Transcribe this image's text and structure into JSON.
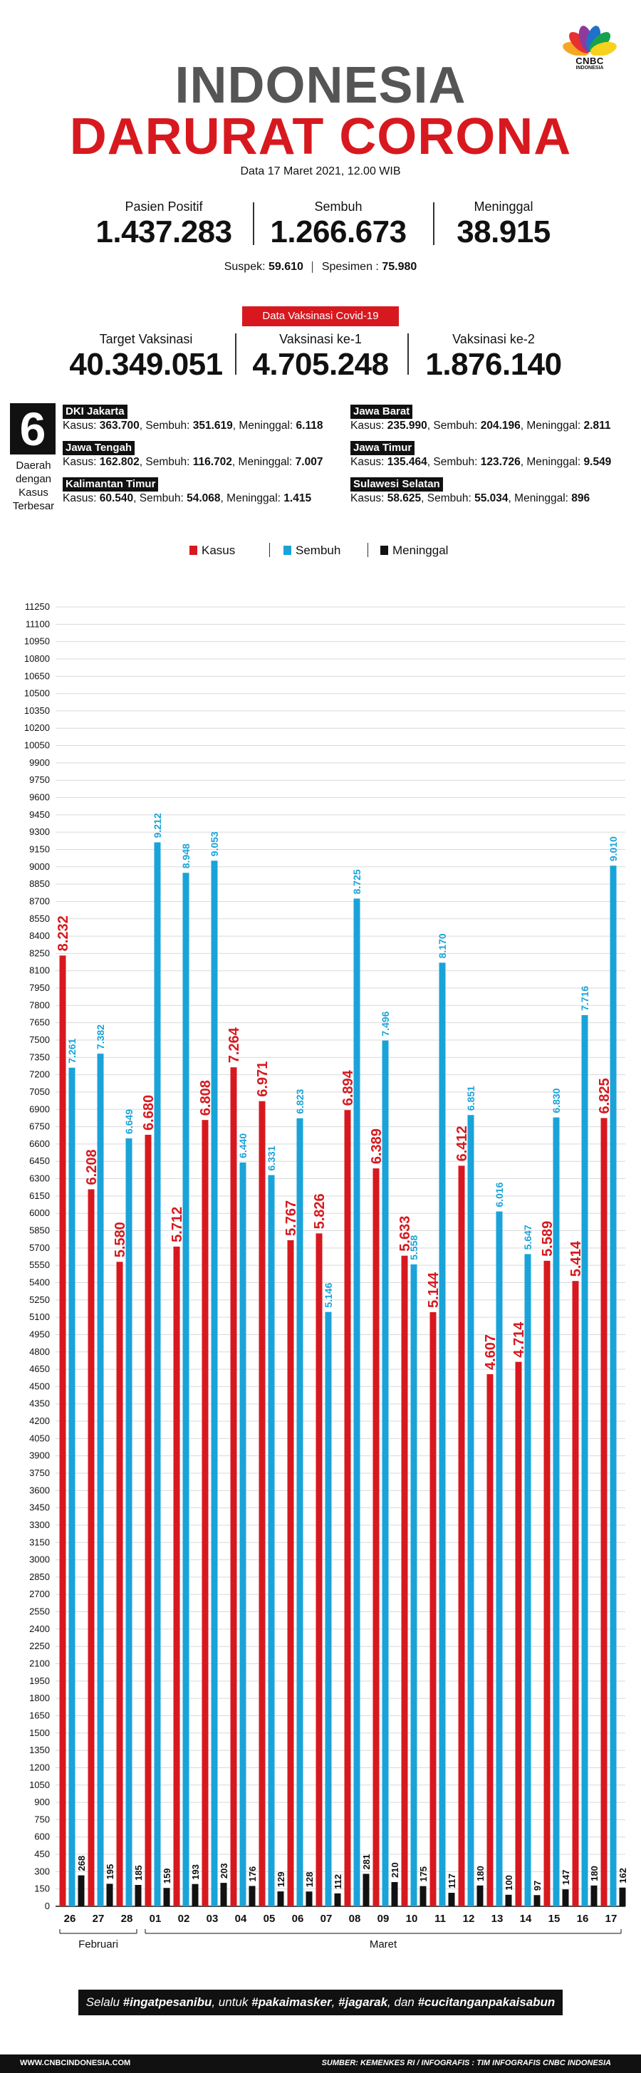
{
  "brand": {
    "logo_text": "CNBC",
    "logo_sub": "INDONESIA",
    "logo_colors": [
      "#f5a623",
      "#e8312f",
      "#8e3a9d",
      "#1f72c9",
      "#16a34a",
      "#f7d11e"
    ]
  },
  "header": {
    "title_line1": "INDONESIA",
    "title_line2": "DARURAT CORONA",
    "date": "Data 17 Maret 2021, 12.00 WIB"
  },
  "stats": [
    {
      "label": "Pasien Positif",
      "value": "1.437.283"
    },
    {
      "label": "Sembuh",
      "value": "1.266.673"
    },
    {
      "label": "Meninggal",
      "value": "38.915"
    }
  ],
  "substats": {
    "suspek_label": "Suspek:",
    "suspek_value": "59.610",
    "spesimen_label": "Spesimen :",
    "spesimen_value": "75.980"
  },
  "vaccination": {
    "badge": "Data Vaksinasi Covid-19",
    "items": [
      {
        "label": "Target Vaksinasi",
        "value": "40.349.051"
      },
      {
        "label": "Vaksinasi ke-1",
        "value": "4.705.248"
      },
      {
        "label": "Vaksinasi ke-2",
        "value": "1.876.140"
      }
    ]
  },
  "top_regions": {
    "number": "6",
    "caption_lines": [
      "Daerah",
      "dengan",
      "Kasus",
      "Terbesar"
    ],
    "kasus_label": "Kasus:",
    "sembuh_label": "Sembuh:",
    "meninggal_label": "Meninggal:",
    "regions": [
      {
        "name": "DKI Jakarta",
        "kasus": "363.700",
        "sembuh": "351.619",
        "meninggal": "6.118"
      },
      {
        "name": "Jawa Tengah",
        "kasus": "162.802",
        "sembuh": "116.702",
        "meninggal": "7.007"
      },
      {
        "name": "Kalimantan Timur",
        "kasus": "60.540",
        "sembuh": "54.068",
        "meninggal": "1.415"
      },
      {
        "name": "Jawa Barat",
        "kasus": "235.990",
        "sembuh": "204.196",
        "meninggal": "2.811"
      },
      {
        "name": "Jawa Timur",
        "kasus": "135.464",
        "sembuh": "123.726",
        "meninggal": "9.549"
      },
      {
        "name": "Sulawesi Selatan",
        "kasus": "58.625",
        "sembuh": "55.034",
        "meninggal": "896"
      }
    ]
  },
  "legend": [
    {
      "label": "Kasus",
      "color": "#d7191f"
    },
    {
      "label": "Sembuh",
      "color": "#1aa3d9"
    },
    {
      "label": "Meninggal",
      "color": "#111111"
    }
  ],
  "chart_data": {
    "type": "bar",
    "title": "",
    "xlabel": "",
    "ylabel": "",
    "ylim": [
      0,
      11250
    ],
    "ytick_step": 150,
    "grid": true,
    "legend_position": "top-center",
    "categories": [
      "26",
      "27",
      "28",
      "01",
      "02",
      "03",
      "04",
      "05",
      "06",
      "07",
      "08",
      "09",
      "10",
      "11",
      "12",
      "13",
      "14",
      "15",
      "16",
      "17"
    ],
    "month_groups": [
      {
        "label": "Februari",
        "from": "26",
        "to": "28"
      },
      {
        "label": "Maret",
        "from": "01",
        "to": "17"
      }
    ],
    "series": [
      {
        "name": "Kasus",
        "color": "#d7191f",
        "values": [
          8232,
          6208,
          5580,
          6680,
          5712,
          6808,
          7264,
          6971,
          5767,
          5826,
          6894,
          6389,
          5633,
          5144,
          6412,
          4607,
          4714,
          5589,
          5414,
          6825
        ],
        "labels": [
          "8.232",
          "6.208",
          "5.580",
          "6.680",
          "5.712",
          "6.808",
          "7.264",
          "6.971",
          "5.767",
          "5.826",
          "6.894",
          "6.389",
          "5.633",
          "5.144",
          "6.412",
          "4.607",
          "4.714",
          "5.589",
          "5.414",
          "6.825"
        ]
      },
      {
        "name": "Sembuh",
        "color": "#1aa3d9",
        "values": [
          7261,
          7382,
          6649,
          9212,
          8948,
          9053,
          6440,
          6331,
          6823,
          5146,
          8725,
          7496,
          5558,
          8170,
          6851,
          6016,
          5647,
          6830,
          7716,
          9010
        ],
        "labels": [
          "7.261",
          "7.382",
          "6.649",
          "9.212",
          "8.948",
          "9.053",
          "6.440",
          "6.331",
          "6.823",
          "5.146",
          "8.725",
          "7.496",
          "5.558",
          "8.170",
          "6.851",
          "6.016",
          "5.647",
          "6.830",
          "7.716",
          "9.010"
        ]
      },
      {
        "name": "Meninggal",
        "color": "#111111",
        "values": [
          268,
          195,
          185,
          159,
          193,
          203,
          176,
          129,
          128,
          112,
          281,
          210,
          175,
          117,
          180,
          100,
          97,
          147,
          180,
          162
        ],
        "labels": [
          "268",
          "195",
          "185",
          "159",
          "193",
          "203",
          "176",
          "129",
          "128",
          "112",
          "281",
          "210",
          "175",
          "117",
          "180",
          "100",
          "97",
          "147",
          "180",
          "162"
        ]
      }
    ]
  },
  "slogan": {
    "p1": "Selalu ",
    "t1": "#ingatpesanibu",
    "p2": ", untuk ",
    "t2": "#pakaimasker",
    "p3": ", ",
    "t3": "#jagarak",
    "p4": ", dan ",
    "t4": "#cucitanganpakaisabun"
  },
  "footer": {
    "website": "WWW.CNBCINDONESIA.COM",
    "source": "SUMBER: KEMENKES RI / INFOGRAFIS : TIM INFOGRAFIS CNBC INDONESIA"
  }
}
